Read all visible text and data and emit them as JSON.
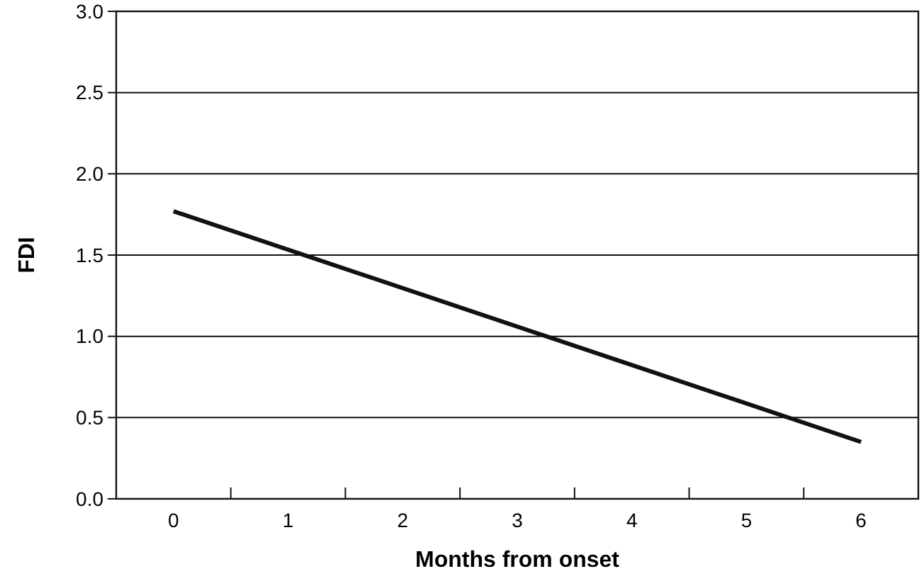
{
  "chart_data": {
    "type": "line",
    "xlabel": "Months from onset",
    "ylabel": "FDI",
    "x": [
      0,
      6
    ],
    "series": [
      {
        "color": "#111111",
        "values": [
          1.77,
          0.35
        ]
      }
    ],
    "xlim": [
      -0.5,
      6.5
    ],
    "xticks": [
      0,
      1,
      2,
      3,
      4,
      5,
      6,
      {
        "value": 0.5,
        "label": null
      },
      {
        "value": 1.5,
        "label": null
      },
      {
        "value": 2.5,
        "label": null
      },
      {
        "value": 3.5,
        "label": null
      },
      {
        "value": 4.5,
        "label": null
      },
      {
        "value": 5.5,
        "label": null
      }
    ],
    "ylim": [
      0,
      3
    ],
    "yticks": [
      {
        "value": 0,
        "label": "0.0"
      },
      {
        "value": 0.5,
        "label": "0.5"
      },
      {
        "value": 1,
        "label": "1.0"
      },
      {
        "value": 1.5,
        "label": "1.5"
      },
      {
        "value": 2,
        "label": "2.0"
      },
      {
        "value": 2.5,
        "label": "2.5"
      },
      {
        "value": 3,
        "label": "3.0"
      }
    ],
    "grid": "y",
    "marker": "none",
    "line_style": "solid"
  }
}
